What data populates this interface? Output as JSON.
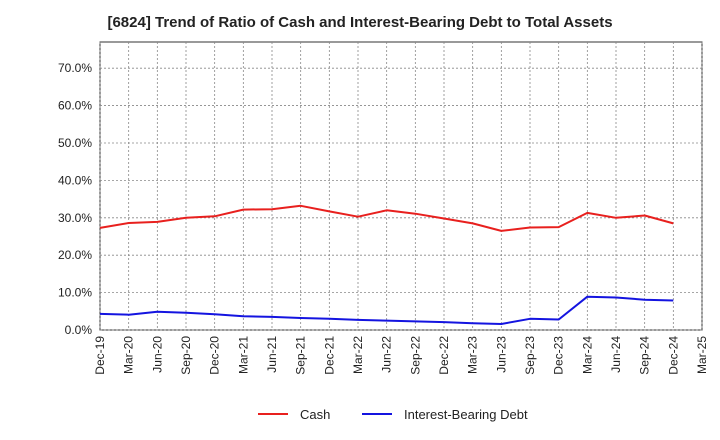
{
  "title": "[6824]  Trend of Ratio of Cash and Interest-Bearing Debt to Total Assets",
  "chart_data": {
    "type": "line",
    "title": "[6824]  Trend of Ratio of Cash and Interest-Bearing Debt to Total Assets",
    "xlabel": "",
    "ylabel": "",
    "ylim": [
      0,
      77
    ],
    "y_ticks": [
      0,
      10,
      20,
      30,
      40,
      50,
      60,
      70
    ],
    "y_tick_labels": [
      "0.0%",
      "10.0%",
      "20.0%",
      "30.0%",
      "40.0%",
      "50.0%",
      "60.0%",
      "70.0%"
    ],
    "grid": true,
    "legend_position": "bottom",
    "x": [
      "Dec-19",
      "Mar-20",
      "Jun-20",
      "Sep-20",
      "Dec-20",
      "Mar-21",
      "Jun-21",
      "Sep-21",
      "Dec-21",
      "Mar-22",
      "Jun-22",
      "Sep-22",
      "Dec-22",
      "Mar-23",
      "Jun-23",
      "Sep-23",
      "Dec-23",
      "Mar-24",
      "Jun-24",
      "Sep-24",
      "Dec-24",
      "Mar-25"
    ],
    "series": [
      {
        "name": "Cash",
        "color": "#e8201e",
        "values": [
          27.3,
          28.6,
          28.9,
          30.0,
          30.4,
          32.2,
          32.3,
          33.2,
          31.7,
          30.3,
          32.0,
          31.1,
          29.8,
          28.5,
          26.5,
          27.4,
          27.5,
          31.3,
          30.0,
          30.6,
          28.5,
          null
        ]
      },
      {
        "name": "Interest-Bearing Debt",
        "color": "#1414e0",
        "values": [
          4.3,
          4.1,
          4.9,
          4.6,
          4.2,
          3.7,
          3.5,
          3.2,
          3.0,
          2.7,
          2.5,
          2.3,
          2.1,
          1.8,
          1.6,
          3.0,
          2.8,
          8.9,
          8.7,
          8.1,
          7.9,
          null
        ]
      }
    ]
  }
}
